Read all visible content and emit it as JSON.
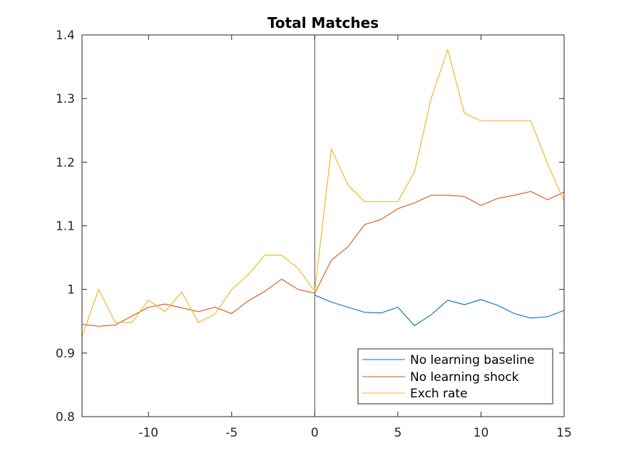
{
  "chart_data": {
    "type": "line",
    "title": "Total Matches",
    "xlabel": "",
    "ylabel": "",
    "xlim": [
      -14,
      15
    ],
    "ylim": [
      0.8,
      1.4
    ],
    "xticks": [
      -10,
      -5,
      0,
      5,
      10,
      15
    ],
    "yticks": [
      0.8,
      0.9,
      1,
      1.1,
      1.2,
      1.3,
      1.4
    ],
    "xtick_labels": [
      "-10",
      "-5",
      "0",
      "5",
      "10",
      "15"
    ],
    "ytick_labels": [
      "0.8",
      "0.9",
      "1",
      "1.1",
      "1.2",
      "1.3",
      "1.4"
    ],
    "grid": false,
    "vertical_line_x": 0,
    "legend_position": "bottom-right",
    "series": [
      {
        "name": "No learning baseline",
        "color": "#0072bd",
        "x": [
          0,
          1,
          2,
          3,
          4,
          5,
          6,
          7,
          8,
          9,
          10,
          11,
          12,
          13,
          14,
          15
        ],
        "values": [
          0.991,
          0.98,
          0.972,
          0.964,
          0.963,
          0.972,
          0.943,
          0.96,
          0.983,
          0.976,
          0.984,
          0.975,
          0.962,
          0.955,
          0.957,
          0.967
        ]
      },
      {
        "name": "No learning shock",
        "color": "#d95319",
        "x": [
          -14,
          -13,
          -12,
          -11,
          -10,
          -9,
          -8,
          -7,
          -6,
          -5,
          -4,
          -3,
          -2,
          -1,
          0,
          1,
          2,
          3,
          4,
          5,
          6,
          7,
          8,
          9,
          10,
          11,
          12,
          13,
          14,
          15
        ],
        "values": [
          0.945,
          0.942,
          0.944,
          0.958,
          0.972,
          0.977,
          0.971,
          0.965,
          0.972,
          0.962,
          0.982,
          0.997,
          1.016,
          1.0,
          0.994,
          1.046,
          1.067,
          1.102,
          1.11,
          1.127,
          1.136,
          1.148,
          1.148,
          1.146,
          1.132,
          1.143,
          1.148,
          1.154,
          1.141,
          1.153
        ]
      },
      {
        "name": "Exch rate",
        "color": "#edb120",
        "x": [
          -14,
          -13,
          -12,
          -11,
          -10,
          -9,
          -8,
          -7,
          -6,
          -5,
          -4,
          -3,
          -2,
          -1,
          0,
          1,
          2,
          3,
          4,
          5,
          6,
          7,
          8,
          9,
          10,
          11,
          12,
          13,
          14,
          15
        ],
        "values": [
          0.926,
          1.0,
          0.948,
          0.948,
          0.983,
          0.965,
          0.996,
          0.948,
          0.961,
          1.0,
          1.023,
          1.054,
          1.054,
          1.033,
          0.997,
          1.221,
          1.164,
          1.138,
          1.138,
          1.138,
          1.185,
          1.3,
          1.377,
          1.277,
          1.265,
          1.265,
          1.265,
          1.265,
          1.198,
          1.139
        ]
      }
    ]
  }
}
